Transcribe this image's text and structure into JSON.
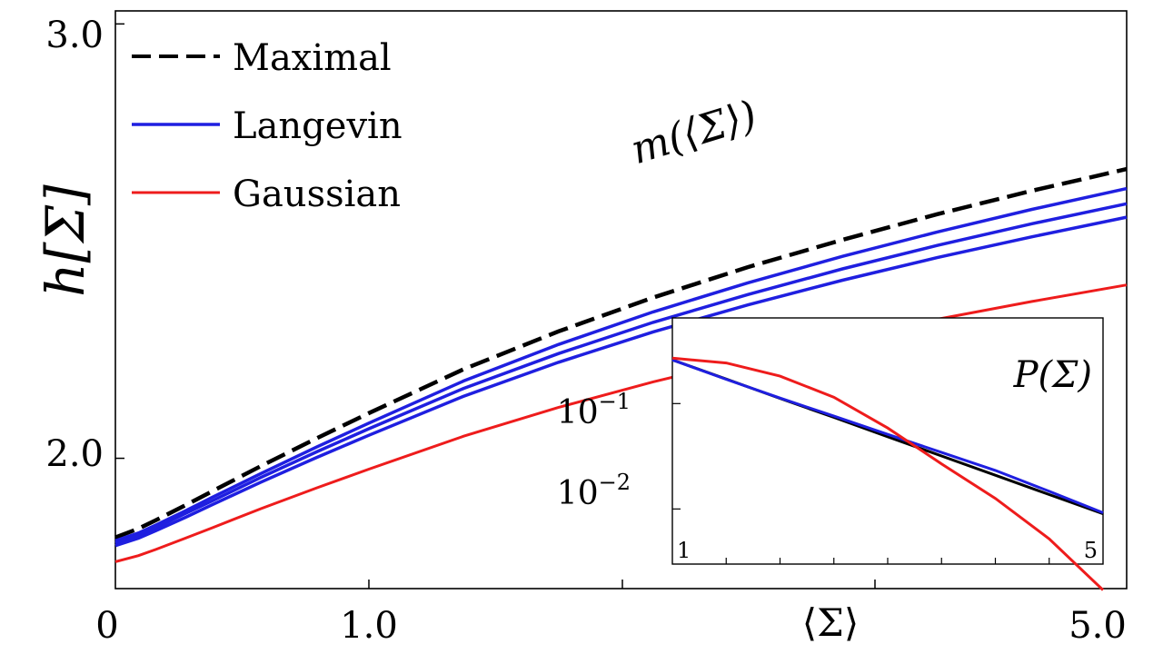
{
  "chart_data": [
    {
      "type": "line",
      "ylabel": "h[Σ]",
      "xlabel": "⟨Σ⟩",
      "xlim": [
        0,
        5.0
      ],
      "ylim": [
        1.7,
        3.03
      ],
      "x_ticks": [
        {
          "value": 0,
          "label": "0"
        },
        {
          "value": 1.0,
          "label": "1.0"
        },
        {
          "value": 5.0,
          "label": "5.0"
        }
      ],
      "y_ticks": [
        {
          "value": 2.0,
          "label": "2.0"
        },
        {
          "value": 3.0,
          "label": "3.0"
        }
      ],
      "annotation": "m(⟨Σ⟩)",
      "legend": [
        {
          "label": "Maximal",
          "color": "#000000",
          "style": "dashed"
        },
        {
          "label": "Langevin",
          "color": "#1f1fe0",
          "style": "solid"
        },
        {
          "label": "Gaussian",
          "color": "#ee1c1c",
          "style": "solid"
        }
      ],
      "x": [
        0.0,
        0.05,
        0.1,
        0.2,
        0.3,
        0.5,
        0.75,
        1.0,
        1.5,
        2.0,
        2.5,
        3.0,
        3.5,
        4.0,
        4.5,
        5.0
      ],
      "series": [
        {
          "name": "Maximal",
          "color": "#000000",
          "style": "dashed",
          "values": [
            1.818,
            1.838,
            1.857,
            1.892,
            1.924,
            1.982,
            2.046,
            2.104,
            2.205,
            2.292,
            2.37,
            2.44,
            2.503,
            2.562,
            2.616,
            2.666
          ]
        },
        {
          "name": "Langevin",
          "color": "#1f1fe0",
          "style": "solid",
          "values": [
            1.81,
            1.828,
            1.846,
            1.879,
            1.91,
            1.965,
            2.026,
            2.081,
            2.178,
            2.262,
            2.337,
            2.404,
            2.465,
            2.521,
            2.573,
            2.621
          ]
        },
        {
          "name": "Langevin",
          "color": "#1f1fe0",
          "style": "solid",
          "values": [
            1.805,
            1.823,
            1.84,
            1.873,
            1.902,
            1.956,
            2.015,
            2.068,
            2.161,
            2.241,
            2.313,
            2.377,
            2.436,
            2.49,
            2.54,
            2.586
          ]
        },
        {
          "name": "Langevin",
          "color": "#1f1fe0",
          "style": "solid",
          "values": [
            1.799,
            1.816,
            1.833,
            1.864,
            1.893,
            1.945,
            2.002,
            2.053,
            2.143,
            2.221,
            2.291,
            2.353,
            2.41,
            2.462,
            2.51,
            2.555
          ]
        },
        {
          "name": "Gaussian",
          "color": "#ee1c1c",
          "style": "solid",
          "values": [
            1.762,
            1.776,
            1.79,
            1.816,
            1.84,
            1.884,
            1.932,
            1.975,
            2.051,
            2.117,
            2.176,
            2.228,
            2.276,
            2.32,
            2.361,
            2.399
          ]
        }
      ]
    },
    {
      "type": "line",
      "title": "P(Σ)",
      "yscale": "log",
      "xlim": [
        1,
        5
      ],
      "ylim": [
        0.003,
        0.65
      ],
      "x_ticks": [
        {
          "value": 1,
          "label": "1"
        },
        {
          "value": 5,
          "label": "5"
        }
      ],
      "y_ticks": [
        {
          "value": 0.1,
          "base": "10",
          "exp": "−1"
        },
        {
          "value": 0.01,
          "base": "10",
          "exp": "−2"
        }
      ],
      "x": [
        1.0,
        1.5,
        2.0,
        2.5,
        3.0,
        3.5,
        4.0,
        4.5,
        5.0
      ],
      "series": [
        {
          "name": "Maximal",
          "color": "#000000",
          "values": [
            0.26,
            0.171,
            0.112,
            0.074,
            0.0484,
            0.0318,
            0.0209,
            0.0137,
            0.009
          ]
        },
        {
          "name": "Langevin",
          "color": "#1f1fe0",
          "values": [
            0.26,
            0.17,
            0.113,
            0.076,
            0.051,
            0.0344,
            0.0232,
            0.0147,
            0.0092
          ]
        },
        {
          "name": "Gaussian",
          "color": "#ee1c1c",
          "values": [
            0.27,
            0.243,
            0.182,
            0.115,
            0.0586,
            0.0268,
            0.0126,
            0.0052,
            0.0017
          ]
        }
      ]
    }
  ]
}
